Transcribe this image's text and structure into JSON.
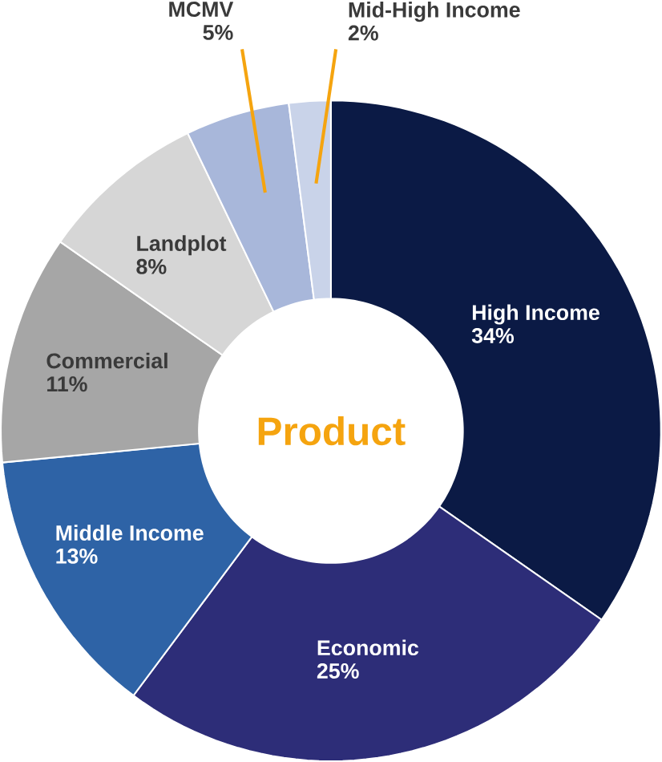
{
  "chart_data": {
    "type": "donut",
    "title": "Product",
    "categories": [
      "High Income",
      "Economic",
      "Middle Income",
      "Commercial",
      "Landplot",
      "MCMV",
      "Mid-High Income"
    ],
    "values": [
      34,
      25,
      13,
      11,
      8,
      5,
      2
    ],
    "value_labels": [
      "34%",
      "25%",
      "13%",
      "11%",
      "8%",
      "5%",
      "2%"
    ],
    "colors": [
      "#0b1a45",
      "#2d2d78",
      "#2e63a6",
      "#a6a6a6",
      "#d6d6d6",
      "#a8b7da",
      "#c9d3e9"
    ]
  }
}
